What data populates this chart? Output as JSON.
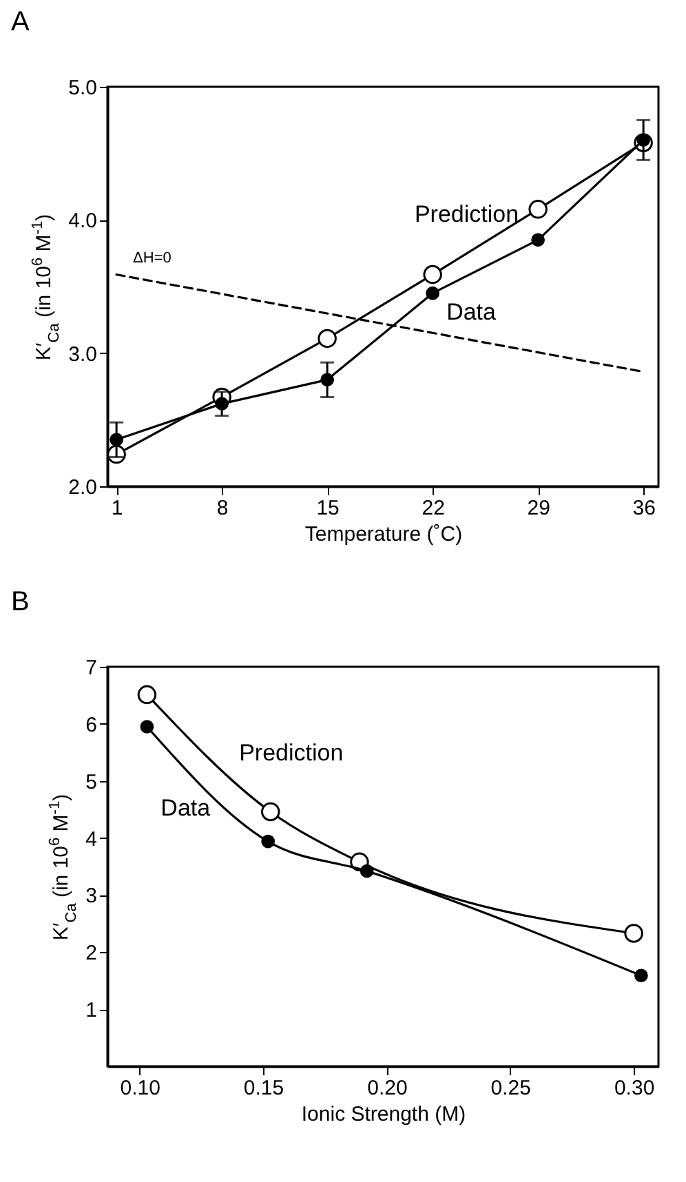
{
  "chart_data": [
    {
      "type": "line",
      "title": "A",
      "xlabel": "Temperature (˚C)",
      "ylabel": "K′$_{Ca}$ (in 10$^{6}$ M$^{-1}$)",
      "x": [
        1,
        8,
        15,
        22,
        29,
        36
      ],
      "xlim": [
        0.4,
        37
      ],
      "xticks": [
        1,
        8,
        15,
        22,
        29,
        36
      ],
      "ylim": [
        2,
        5
      ],
      "yticks": [
        {
          "value": 2,
          "label": "2.0"
        },
        {
          "value": 3,
          "label": "3.0"
        },
        {
          "value": 4,
          "label": "4.0"
        },
        {
          "value": 5,
          "label": "5.0"
        }
      ],
      "grid": false,
      "legend": false,
      "marker": "circle",
      "series": [
        {
          "name": "Prediction",
          "color": "#000000",
          "values": [
            2.24,
            2.67,
            3.11,
            3.59,
            4.08,
            4.58
          ]
        },
        {
          "name": "Data",
          "color": "#000000",
          "values": [
            2.35,
            2.62,
            2.8,
            3.45,
            3.85,
            4.6
          ],
          "errors": [
            0.13,
            0.09,
            0.13,
            null,
            null,
            0.15
          ]
        },
        {
          "name": "ΔH=0",
          "color": "#000000",
          "type": "line",
          "x": [
            1,
            36
          ],
          "values": [
            3.59,
            2.86
          ],
          "line_style": "dashed",
          "marker": "none"
        }
      ]
    },
    {
      "type": "line",
      "title": "B",
      "xlabel": "Ionic Strength (M)",
      "ylabel": "K′$_{Ca}$ (in 10$^{6}$ M$^{-1}$)",
      "xlim": [
        0.087,
        0.31
      ],
      "xticks": [
        {
          "value": 0.1,
          "label": "0.10"
        },
        0.15,
        {
          "value": 0.2,
          "label": "0.20"
        },
        0.25,
        {
          "value": 0.3,
          "label": "0.30"
        }
      ],
      "ylim": [
        0,
        7
      ],
      "yticks": [
        1,
        2,
        3,
        4,
        5,
        6,
        7
      ],
      "grid": false,
      "legend": false,
      "marker": "circle",
      "series": [
        {
          "name": "Prediction",
          "color": "#000000",
          "x": [
            0.103,
            0.153,
            0.189,
            0.3
          ],
          "values": [
            6.51,
            4.46,
            3.58,
            2.33
          ]
        },
        {
          "name": "Data",
          "color": "#000000",
          "x": [
            0.103,
            0.152,
            0.192,
            0.303
          ],
          "values": [
            5.95,
            3.94,
            3.42,
            1.59
          ]
        }
      ]
    }
  ]
}
